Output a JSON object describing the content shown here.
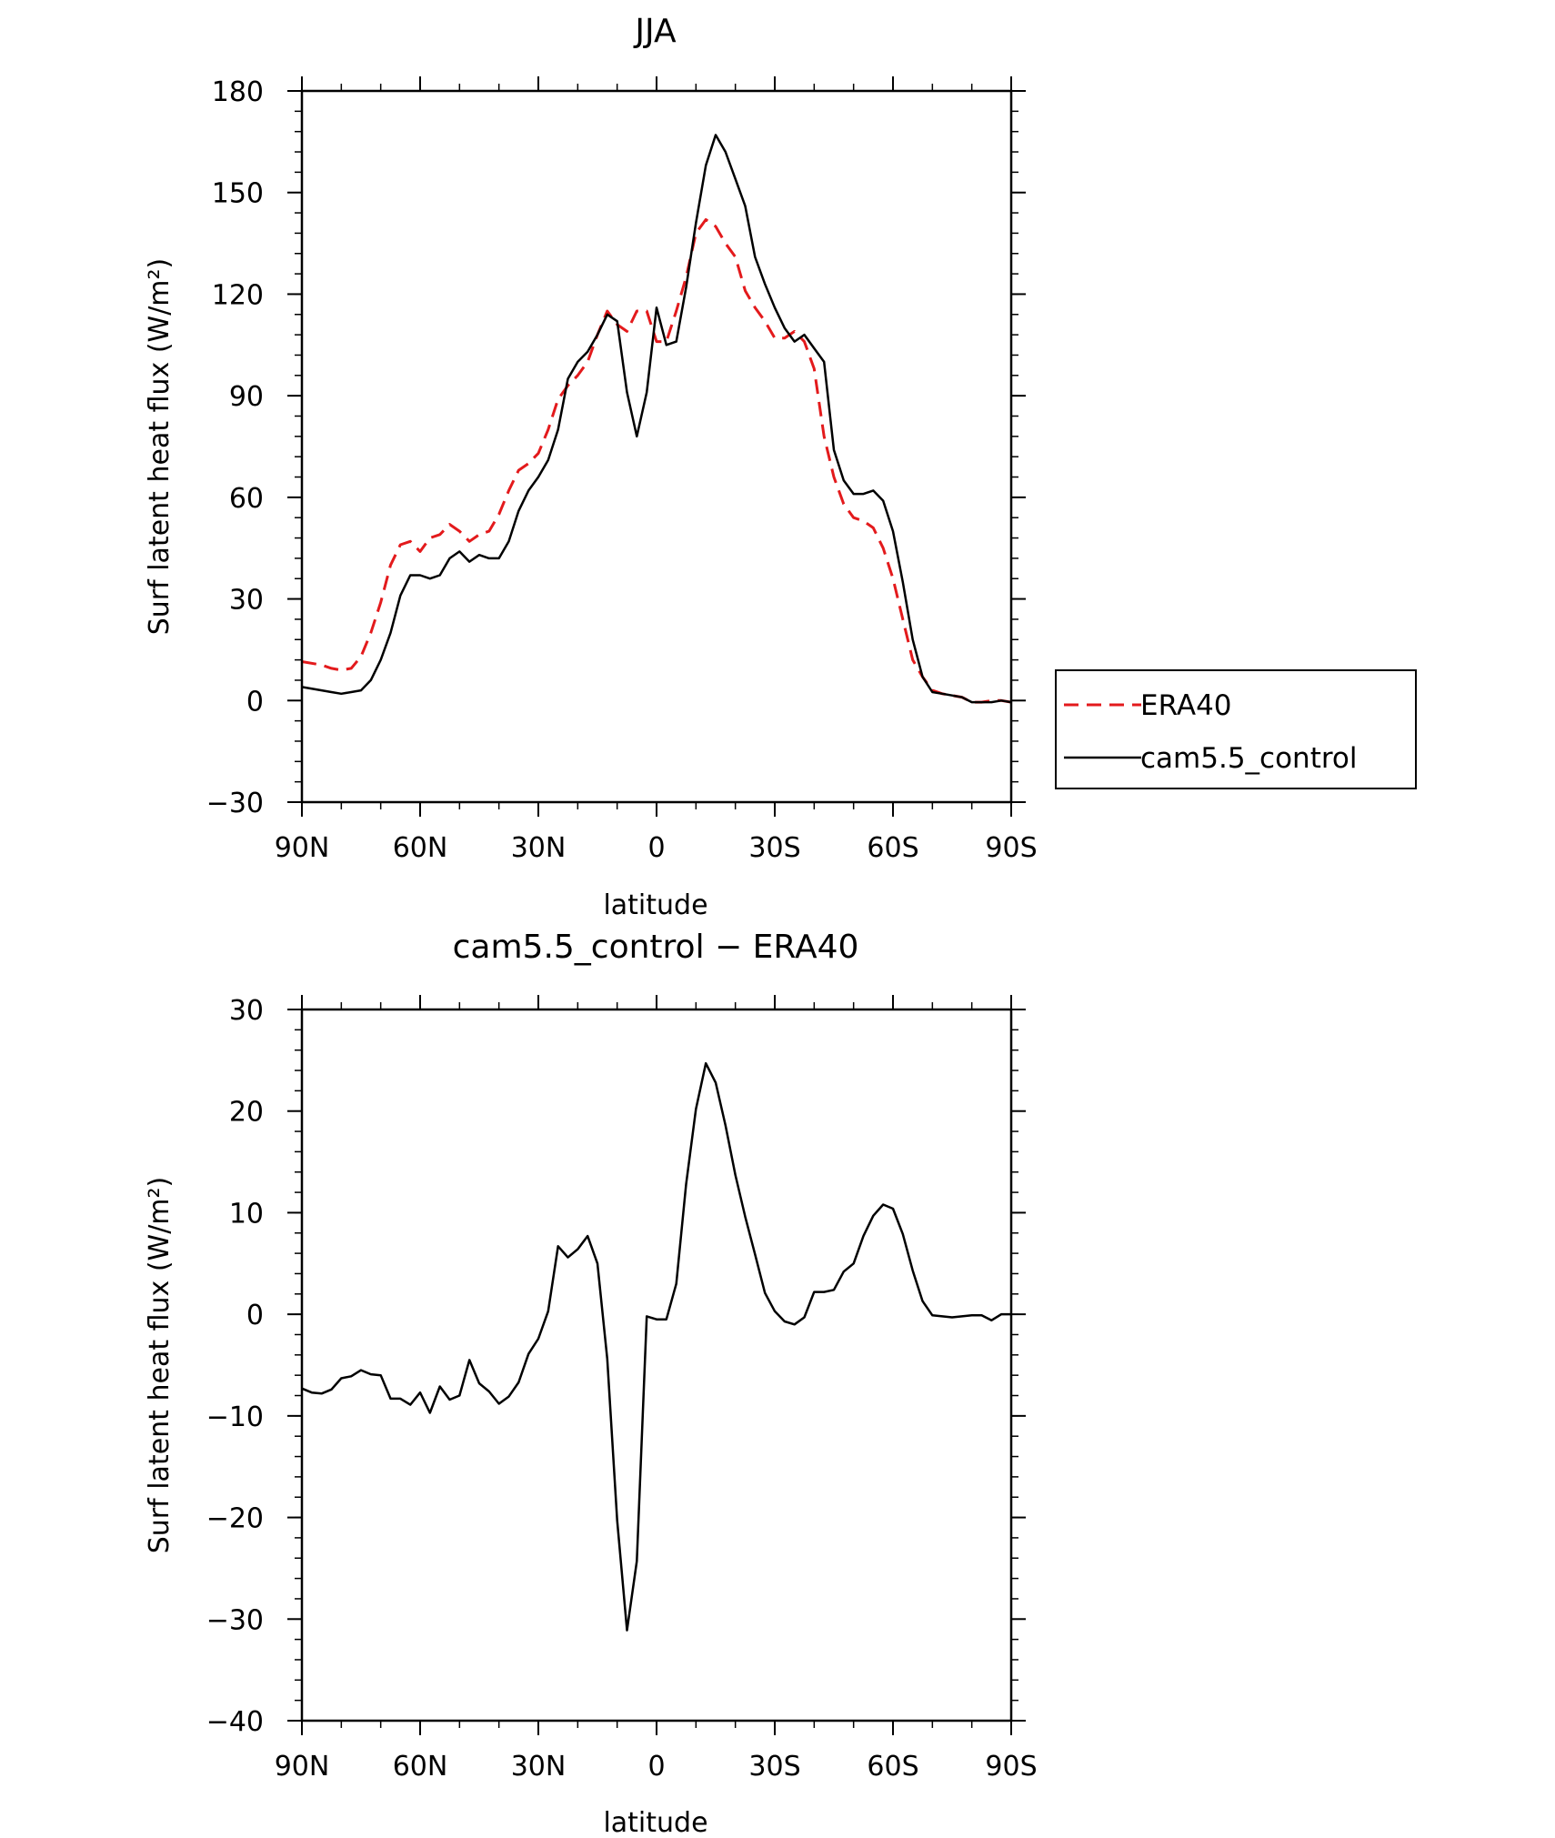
{
  "chart_data": [
    {
      "type": "line",
      "title": "JJA",
      "xlabel": "latitude",
      "ylabel": "Surf latent heat flux (W/m²)",
      "xlim": [
        -90,
        90
      ],
      "ylim": [
        -30,
        180
      ],
      "yticks": [
        -30,
        0,
        30,
        60,
        90,
        120,
        150,
        180
      ],
      "yticks_labels": [
        "−30",
        "0",
        "30",
        "60",
        "90",
        "120",
        "150",
        "180"
      ],
      "xticks": [
        -90,
        -60,
        -30,
        0,
        30,
        60,
        90
      ],
      "xticks_labels": [
        "90N",
        "60N",
        "30N",
        "0",
        "30S",
        "60S",
        "90S"
      ],
      "x": [
        -90,
        -85,
        -82.5,
        -80,
        -77.5,
        -75,
        -72.5,
        -70,
        -67.5,
        -65,
        -62.5,
        -60,
        -57.5,
        -55,
        -52.5,
        -50,
        -47.5,
        -45,
        -42.5,
        -40,
        -37.5,
        -35,
        -32.5,
        -30,
        -27.5,
        -25,
        -22.5,
        -20,
        -17.5,
        -15,
        -12.5,
        -10,
        -7.5,
        -5,
        -2.5,
        0,
        2.5,
        5,
        7.5,
        10,
        12.5,
        15,
        17.5,
        20,
        22.5,
        25,
        27.5,
        30,
        32.5,
        35,
        37.5,
        40,
        42.5,
        45,
        47.5,
        50,
        52.5,
        55,
        57.5,
        60,
        62.5,
        65,
        67.5,
        70,
        72.5,
        75,
        77.5,
        80,
        82.5,
        85,
        87.5,
        90
      ],
      "series": [
        {
          "name": "ERA40",
          "color": "#e31a1c",
          "dash": "dashed",
          "values": [
            11.5,
            10.5,
            9.5,
            9,
            9.5,
            13,
            20,
            29,
            40,
            46,
            47,
            44,
            48,
            49,
            52,
            50,
            47,
            49,
            50,
            55,
            62,
            68,
            70,
            73,
            80,
            89,
            93,
            96,
            100,
            108,
            115,
            111,
            109,
            115,
            115,
            106,
            106,
            115,
            125,
            138,
            142,
            140,
            135,
            131,
            121,
            116,
            112,
            107,
            107,
            109,
            106,
            98,
            78,
            66,
            58,
            54,
            53,
            51,
            45,
            36,
            24,
            12,
            7,
            3,
            2,
            1.5,
            1,
            -0.5,
            -0.5,
            0,
            0,
            -0.5
          ]
        },
        {
          "name": "cam5.5_control",
          "color": "#000000",
          "dash": "solid",
          "values": [
            4,
            3,
            2.5,
            2,
            2.5,
            3,
            6,
            12,
            20,
            31,
            37,
            37,
            36,
            37,
            42,
            44,
            41,
            43,
            42,
            42,
            47,
            56,
            62,
            66,
            71,
            80,
            95,
            100,
            103,
            108,
            114,
            112,
            91,
            78,
            91,
            116,
            105,
            106,
            122,
            141,
            158,
            167,
            162,
            154,
            146,
            131,
            123,
            116,
            110,
            106,
            108,
            104,
            100,
            74,
            65,
            61,
            61,
            62,
            59,
            50,
            35,
            18,
            7,
            2.5,
            2,
            1.5,
            1,
            -0.5,
            -0.5,
            -0.5,
            0,
            -0.5
          ]
        }
      ],
      "legend": {
        "position": "right",
        "entries": [
          "ERA40",
          "cam5.5_control"
        ]
      }
    },
    {
      "type": "line",
      "title": "cam5.5_control − ERA40",
      "xlabel": "latitude",
      "ylabel": "Surf latent heat flux (W/m²)",
      "xlim": [
        -90,
        90
      ],
      "ylim": [
        -40,
        30
      ],
      "yticks": [
        -40,
        -30,
        -20,
        -10,
        0,
        10,
        20,
        30
      ],
      "yticks_labels": [
        "−40",
        "−30",
        "−20",
        "−10",
        "0",
        "10",
        "20",
        "30"
      ],
      "xticks": [
        -90,
        -60,
        -30,
        0,
        30,
        60,
        90
      ],
      "xticks_labels": [
        "90N",
        "60N",
        "30N",
        "0",
        "30S",
        "60S",
        "90S"
      ],
      "x": [
        -90,
        -87.5,
        -85,
        -82.5,
        -80,
        -77.5,
        -75,
        -72.5,
        -70,
        -67.5,
        -65,
        -62.5,
        -60,
        -57.5,
        -55,
        -52.5,
        -50,
        -47.5,
        -45,
        -42.5,
        -40,
        -37.5,
        -35,
        -32.5,
        -30,
        -27.5,
        -25,
        -22.5,
        -20,
        -17.5,
        -15,
        -12.5,
        -10,
        -7.5,
        -5,
        -2.5,
        0,
        2.5,
        5,
        7.5,
        10,
        12.5,
        15,
        17.5,
        20,
        22.5,
        25,
        27.5,
        30,
        32.5,
        35,
        37.5,
        40,
        42.5,
        45,
        47.5,
        50,
        52.5,
        55,
        57.5,
        60,
        62.5,
        65,
        67.5,
        70,
        72.5,
        75,
        77.5,
        80,
        82.5,
        85,
        87.5,
        90
      ],
      "series": [
        {
          "name": "",
          "color": "#000000",
          "dash": "solid",
          "values": [
            -7.3,
            -7.7,
            -7.8,
            -7.4,
            -6.3,
            -6.1,
            -5.5,
            -5.9,
            -6.0,
            -8.3,
            -8.3,
            -8.9,
            -7.7,
            -9.7,
            -7.1,
            -8.4,
            -8.0,
            -4.5,
            -6.8,
            -7.6,
            -8.8,
            -8.1,
            -6.7,
            -3.9,
            -2.4,
            0.3,
            6.7,
            5.6,
            6.4,
            7.7,
            5.0,
            -4.4,
            -20.3,
            -31.1,
            -24.3,
            -0.2,
            -0.5,
            -0.5,
            3.0,
            12.8,
            20.2,
            24.7,
            22.8,
            18.6,
            13.7,
            9.6,
            5.9,
            2.1,
            0.3,
            -0.7,
            -1.0,
            -0.3,
            2.2,
            2.2,
            2.4,
            4.2,
            5.0,
            7.7,
            9.7,
            10.8,
            10.4,
            7.9,
            4.3,
            1.3,
            -0.1,
            -0.2,
            -0.3,
            -0.2,
            -0.1,
            -0.1,
            -0.6,
            0.0,
            0.0
          ]
        }
      ]
    }
  ]
}
